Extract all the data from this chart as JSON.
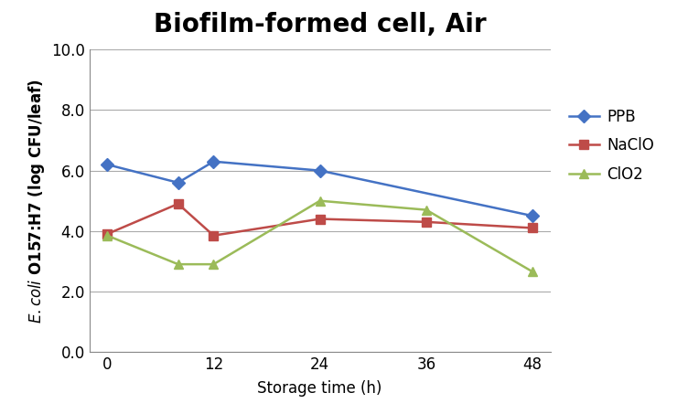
{
  "title": "Biofilm-formed cell, Air",
  "xlabel": "Storage time (h)",
  "x": [
    0,
    8,
    12,
    24,
    36,
    48
  ],
  "x_ticks": [
    0,
    12,
    24,
    36,
    48
  ],
  "series": [
    {
      "label": "PPB",
      "color": "#4472C4",
      "marker": "D",
      "values": [
        6.2,
        5.6,
        6.3,
        6.0,
        null,
        4.5
      ]
    },
    {
      "label": "NaClO",
      "color": "#BE4B48",
      "marker": "s",
      "values": [
        3.9,
        4.9,
        3.85,
        4.4,
        4.3,
        4.1
      ]
    },
    {
      "label": "ClO2",
      "color": "#9BBB59",
      "marker": "^",
      "values": [
        3.85,
        2.9,
        2.9,
        5.0,
        4.7,
        2.65
      ]
    }
  ],
  "ylim": [
    0.0,
    10.0
  ],
  "yticks": [
    0.0,
    2.0,
    4.0,
    6.0,
    8.0,
    10.0
  ],
  "title_fontsize": 20,
  "label_fontsize": 12,
  "tick_fontsize": 12,
  "legend_fontsize": 12,
  "background_color": "#ffffff"
}
